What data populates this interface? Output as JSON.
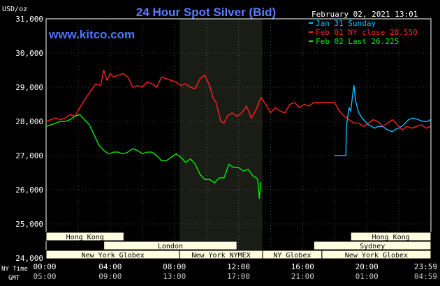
{
  "chart_data": {
    "type": "line",
    "title": "24 Hour Spot Silver (Bid)",
    "watermark": "www.kitco.com",
    "date_text": "February 02, 2021 13:01",
    "ylabel": "USD/oz",
    "ylim": [
      24000,
      31000
    ],
    "y_ticks": [
      "31,000",
      "30,000",
      "29,000",
      "28,000",
      "27,000",
      "26,000",
      "25,000",
      "24,000"
    ],
    "x_ticks_ny": [
      "00:00",
      "04:00",
      "08:00",
      "12:00",
      "16:00",
      "20:00",
      "23:59"
    ],
    "x_ticks_gmt": [
      "05:00",
      "09:00",
      "13:00",
      "17:00",
      "21:00",
      "01:00",
      "04:59"
    ],
    "x_row_label_ny": "NY Time",
    "x_row_label_gmt": "GMT",
    "grid": true,
    "legend_position": "top-right",
    "colors": {
      "background": "#000000",
      "plot_border": "#ffffff",
      "grid": "#808080",
      "title": "#5b7cff",
      "watermark": "#4f74ff",
      "axis_text": "#ffffff",
      "nymex_shade": "#1a1d16",
      "session_box_fill": "#fffde0",
      "session_box_stroke": "#000000",
      "session_text": "#000000"
    },
    "sessions": {
      "row1": [
        "Hong Kong",
        "Hong Kong"
      ],
      "row2": [
        "London",
        "Sydney"
      ],
      "row3": [
        "New York Globex",
        "New York NYMEX",
        "NY Globex",
        "New York Globex"
      ]
    },
    "series": [
      {
        "name": "Jan 31 Sunday",
        "color": "#00bfff",
        "x": [
          18.0,
          18.7,
          18.72,
          18.8,
          18.9,
          19.0,
          19.1,
          19.15,
          19.2,
          19.3,
          19.5,
          19.7,
          19.9,
          20.1,
          20.3,
          20.5,
          20.7,
          21.0,
          21.3,
          21.6,
          21.9,
          22.0,
          22.3,
          22.6,
          22.9,
          23.2,
          23.5,
          23.8,
          23.98
        ],
        "y": [
          27000,
          27000,
          27800,
          28100,
          28400,
          28300,
          28700,
          28900,
          29050,
          28600,
          28250,
          28100,
          28000,
          27900,
          27850,
          27800,
          27850,
          27850,
          27750,
          27700,
          27800,
          27800,
          27900,
          28050,
          28100,
          28050,
          28000,
          28000,
          28050
        ]
      },
      {
        "name": "Feb 01 NY close 28.550",
        "color": "#ff2020",
        "x": [
          0,
          0.3,
          0.6,
          0.9,
          1.2,
          1.5,
          1.8,
          2.1,
          2.5,
          2.8,
          3.1,
          3.4,
          3.6,
          3.8,
          4.0,
          4.2,
          4.5,
          4.8,
          5.1,
          5.4,
          5.7,
          6.0,
          6.3,
          6.6,
          6.9,
          7.2,
          7.5,
          7.8,
          8.1,
          8.4,
          8.7,
          9.0,
          9.3,
          9.6,
          9.9,
          10.2,
          10.4,
          10.6,
          10.9,
          11.1,
          11.3,
          11.6,
          11.9,
          12.2,
          12.5,
          12.8,
          13.1,
          13.4,
          13.7,
          14.0,
          14.3,
          14.6,
          14.9,
          15.2,
          15.5,
          15.8,
          16.1,
          16.4,
          16.7,
          17.0,
          17.3,
          17.6,
          17.99,
          18.3,
          18.6,
          18.9,
          19.2,
          19.5,
          19.8,
          20.1,
          20.4,
          20.7,
          21.0,
          21.3,
          21.6,
          21.9,
          22.2,
          22.5,
          22.8,
          23.1,
          23.4,
          23.7,
          23.98
        ],
        "y": [
          28000,
          28050,
          28100,
          28050,
          28100,
          28200,
          28150,
          28400,
          28700,
          28900,
          29100,
          29050,
          29500,
          29200,
          29400,
          29300,
          29350,
          29400,
          29300,
          29000,
          29050,
          29000,
          29150,
          29100,
          29000,
          29300,
          29250,
          29200,
          29150,
          29050,
          29100,
          29000,
          28950,
          29250,
          29350,
          29050,
          28700,
          28550,
          28000,
          27950,
          28150,
          28250,
          28150,
          28250,
          28450,
          28100,
          28350,
          28700,
          28500,
          28250,
          28400,
          28300,
          28250,
          28500,
          28550,
          28400,
          28500,
          28450,
          28550,
          28550,
          28550,
          28550,
          28550,
          28300,
          28150,
          28050,
          27950,
          27950,
          27850,
          27950,
          28050,
          28000,
          27850,
          27950,
          28050,
          27900,
          27750,
          27850,
          27800,
          27850,
          27900,
          27800,
          27850
        ]
      },
      {
        "name": "Feb 02 Last 26.225",
        "color": "#00ee00",
        "x": [
          0,
          0.3,
          0.6,
          0.9,
          1.2,
          1.5,
          1.8,
          2.1,
          2.4,
          2.7,
          3.0,
          3.3,
          3.6,
          3.9,
          4.2,
          4.5,
          4.8,
          5.1,
          5.4,
          5.7,
          6.0,
          6.3,
          6.6,
          6.9,
          7.2,
          7.5,
          7.8,
          8.1,
          8.4,
          8.7,
          9.0,
          9.3,
          9.6,
          9.9,
          10.2,
          10.5,
          10.8,
          11.1,
          11.4,
          11.7,
          12.0,
          12.3,
          12.6,
          12.9,
          13.1,
          13.2,
          13.3,
          13.4
        ],
        "y": [
          27850,
          27900,
          27950,
          28000,
          28000,
          28050,
          28150,
          28200,
          28050,
          27900,
          27600,
          27300,
          27150,
          27050,
          27100,
          27100,
          27050,
          27100,
          27200,
          27150,
          27050,
          27100,
          27100,
          27000,
          26850,
          26850,
          26950,
          27050,
          26950,
          26800,
          26900,
          26750,
          26450,
          26300,
          26300,
          26200,
          26350,
          26350,
          26750,
          26650,
          26650,
          26550,
          26600,
          26400,
          26350,
          26300,
          25750,
          26225
        ]
      }
    ]
  }
}
